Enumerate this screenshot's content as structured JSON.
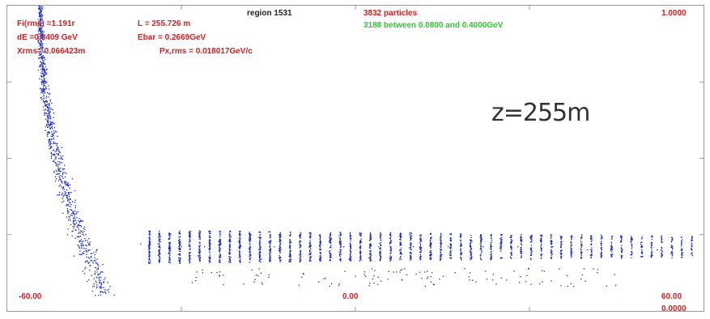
{
  "header": {
    "fi_rms": "Fi(rms) =1.191r",
    "de": "dE =0.3409 GeV",
    "xrms": "Xrms= 0.066423m",
    "length": "L = 255.726 m",
    "ebar": "Ebar =  0.2669GeV",
    "px_rms": "Px,rms = 0.018017GeV/c",
    "region": "region  1531",
    "particles": "3832 particles",
    "between": "3188 between 0.0800 and 0.4000GeV",
    "ymax_label": "1.0000"
  },
  "annotation": {
    "z_label": "z=255m"
  },
  "colors": {
    "labels": "#d42020",
    "between": "#2fc62f",
    "points": "#1a2ad0"
  },
  "chart_data": {
    "type": "scatter",
    "title": "",
    "xlabel": "",
    "ylabel": "",
    "xlim": [
      -60.0,
      60.0
    ],
    "ylim": [
      0.0,
      1.0
    ],
    "x_tick_labels": [
      "-60.00",
      "0.00",
      "60.00"
    ],
    "y_tick_labels": [
      "1.0000",
      "0.0000"
    ],
    "grid": false,
    "series": [
      {
        "values_description_free": true,
        "points_sample": [
          [
            -53.9,
            0.995
          ],
          [
            -54.2,
            0.9
          ],
          [
            -54.5,
            0.8
          ],
          [
            -54.0,
            0.72
          ],
          [
            -53.6,
            0.65
          ],
          [
            -53.0,
            0.58
          ],
          [
            -52.4,
            0.5
          ],
          [
            -51.7,
            0.44
          ],
          [
            -51.0,
            0.38
          ],
          [
            -50.4,
            0.32
          ],
          [
            -49.6,
            0.25
          ],
          [
            -48.5,
            0.18
          ],
          [
            -47.0,
            0.13
          ],
          [
            -45.0,
            0.08
          ],
          [
            -43.5,
            0.06
          ],
          [
            -37.0,
            0.22
          ],
          [
            -34.0,
            0.22
          ],
          [
            -30.0,
            0.21
          ],
          [
            -26.0,
            0.21
          ],
          [
            -20.0,
            0.21
          ],
          [
            -14.0,
            0.21
          ],
          [
            -8.0,
            0.21
          ],
          [
            -2.0,
            0.21
          ],
          [
            4.0,
            0.21
          ],
          [
            10.0,
            0.21
          ],
          [
            16.0,
            0.21
          ],
          [
            22.0,
            0.21
          ],
          [
            28.0,
            0.21
          ],
          [
            34.0,
            0.21
          ],
          [
            40.0,
            0.2
          ],
          [
            46.0,
            0.2
          ],
          [
            52.0,
            0.2
          ],
          [
            58.0,
            0.2
          ]
        ],
        "groups": [
          {
            "kind": "steep_tail",
            "x_range": [
              -55.0,
              -42.0
            ],
            "y_range": [
              0.05,
              1.0
            ],
            "count": 900
          },
          {
            "kind": "bunch_train",
            "x_start": -35.5,
            "x_end": 58.0,
            "bunches": 55,
            "y_center": 0.21,
            "y_halfwidth_start": 0.055,
            "y_halfwidth_end": 0.035,
            "count": 2600
          },
          {
            "kind": "low_spread",
            "x_range": [
              -30.0,
              45.0
            ],
            "y_range": [
              0.08,
              0.14
            ],
            "count": 120
          }
        ]
      }
    ]
  }
}
